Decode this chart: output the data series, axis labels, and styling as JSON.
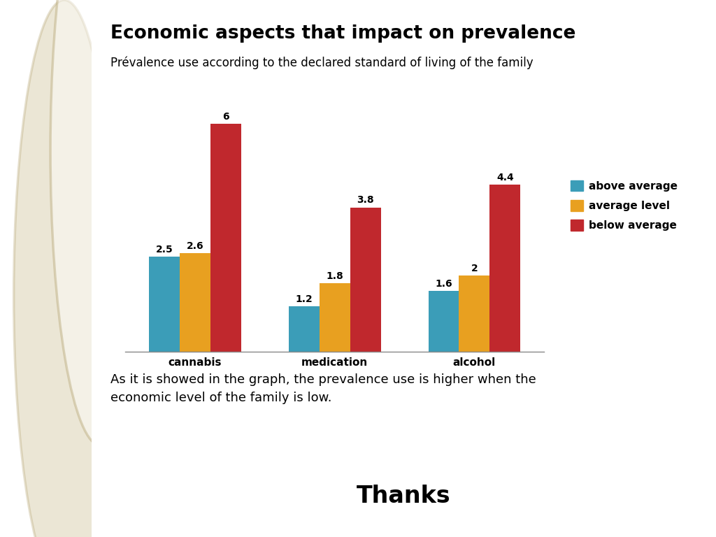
{
  "title": "Economic aspects that impact on prevalence",
  "subtitle": "Prévalence use according to the declared standard of living of the family",
  "categories": [
    "cannabis",
    "medication",
    "alcohol"
  ],
  "series": [
    {
      "label": "above average",
      "color": "#3b9db8",
      "values": [
        2.5,
        1.2,
        1.6
      ]
    },
    {
      "label": "average level",
      "color": "#e8a020",
      "values": [
        2.6,
        1.8,
        2.0
      ]
    },
    {
      "label": "below average",
      "color": "#c0282d",
      "values": [
        6.0,
        3.8,
        4.4
      ]
    }
  ],
  "body_text": "As it is showed in the graph, the prevalence use is higher when the\neconomic level of the family is low.",
  "thanks_text": "Thanks",
  "background_color": "#ffffff",
  "left_panel_color": "#e8d9a8",
  "bar_width": 0.22,
  "ylim": [
    0,
    7.0
  ],
  "title_fontsize": 19,
  "subtitle_fontsize": 12,
  "legend_fontsize": 11,
  "xtick_fontsize": 11,
  "value_label_fontsize": 10,
  "body_fontsize": 13,
  "thanks_fontsize": 24
}
